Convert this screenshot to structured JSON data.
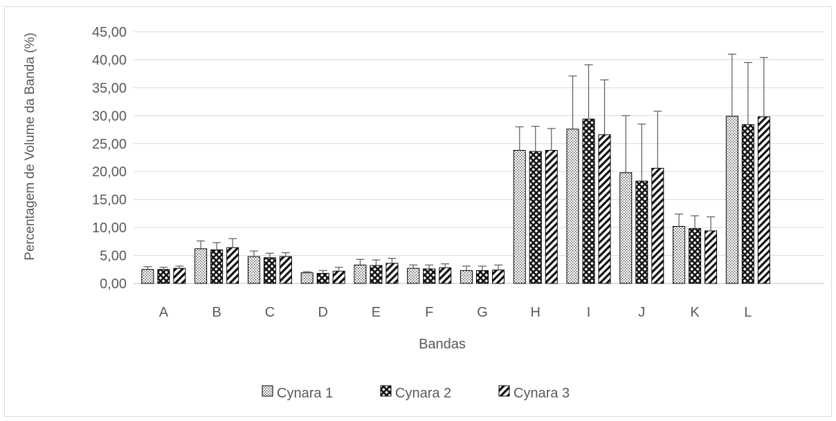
{
  "chart_data": {
    "type": "bar",
    "title": "",
    "xlabel": "Bandas",
    "ylabel": "Percentagem de Volume da Banda (%)",
    "ylim": [
      0,
      45
    ],
    "ytick_step": 5,
    "ytick_labels": [
      "0,00",
      "5,00",
      "10,00",
      "15,00",
      "20,00",
      "25,00",
      "30,00",
      "35,00",
      "40,00",
      "45,00"
    ],
    "grid": true,
    "legend_position": "bottom",
    "categories": [
      "A",
      "B",
      "C",
      "D",
      "E",
      "F",
      "G",
      "H",
      "I",
      "J",
      "K",
      "L"
    ],
    "series": [
      {
        "name": "Cynara 1",
        "pattern": "dotted",
        "values": [
          2.5,
          6.2,
          4.8,
          1.9,
          3.3,
          2.7,
          2.3,
          23.8,
          27.6,
          19.8,
          10.2,
          29.9
        ],
        "errors": [
          0.5,
          1.4,
          1.0,
          0.2,
          1.0,
          0.6,
          0.8,
          4.2,
          9.5,
          10.2,
          2.2,
          11.1
        ]
      },
      {
        "name": "Cynara 2",
        "pattern": "crosshatch",
        "values": [
          2.5,
          6.0,
          4.6,
          1.8,
          3.2,
          2.6,
          2.3,
          23.6,
          29.4,
          18.3,
          9.8,
          28.4
        ],
        "errors": [
          0.4,
          1.3,
          0.8,
          0.5,
          1.0,
          0.7,
          0.8,
          4.5,
          9.7,
          10.2,
          2.3,
          11.1
        ]
      },
      {
        "name": "Cynara 3",
        "pattern": "diagonal",
        "values": [
          2.7,
          6.4,
          4.8,
          2.2,
          3.6,
          2.8,
          2.4,
          23.8,
          26.6,
          20.6,
          9.4,
          29.8
        ],
        "errors": [
          0.4,
          1.6,
          0.7,
          0.7,
          0.9,
          0.7,
          0.9,
          3.9,
          9.8,
          10.2,
          2.5,
          10.6
        ]
      }
    ]
  }
}
